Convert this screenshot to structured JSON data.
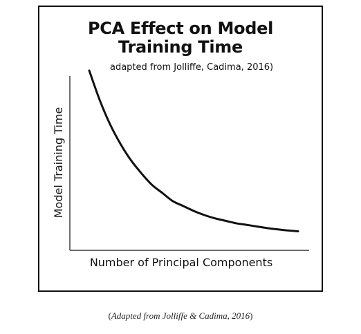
{
  "chart_data": {
    "type": "line",
    "title_lines": [
      "PCA Effect on Model",
      "Training Time"
    ],
    "subtitle": "adapted from Jolliffe, Cadima, 2016)",
    "xlabel": "Number of Principal Components",
    "ylabel": "Model Training Time",
    "x_ticks": false,
    "y_ticks": false,
    "grid": false,
    "legend": "none",
    "series": [
      {
        "color": "#111111",
        "x": [
          0.0,
          0.05,
          0.1,
          0.15,
          0.2,
          0.25,
          0.3,
          0.35,
          0.4,
          0.45,
          0.5,
          0.55,
          0.6,
          0.65,
          0.7,
          0.75,
          0.8,
          0.85,
          0.9,
          0.95,
          1.0
        ],
        "y": [
          1.0,
          0.82,
          0.67,
          0.55,
          0.45,
          0.37,
          0.3,
          0.25,
          0.2,
          0.17,
          0.14,
          0.115,
          0.095,
          0.08,
          0.065,
          0.055,
          0.045,
          0.035,
          0.027,
          0.02,
          0.015
        ]
      }
    ],
    "xlim": [
      0,
      1
    ],
    "ylim": [
      0,
      1
    ]
  },
  "caption": {
    "open": "(",
    "italic_text": "Adapted from Jolliffe & Cadima, 2016",
    "close": ")"
  }
}
